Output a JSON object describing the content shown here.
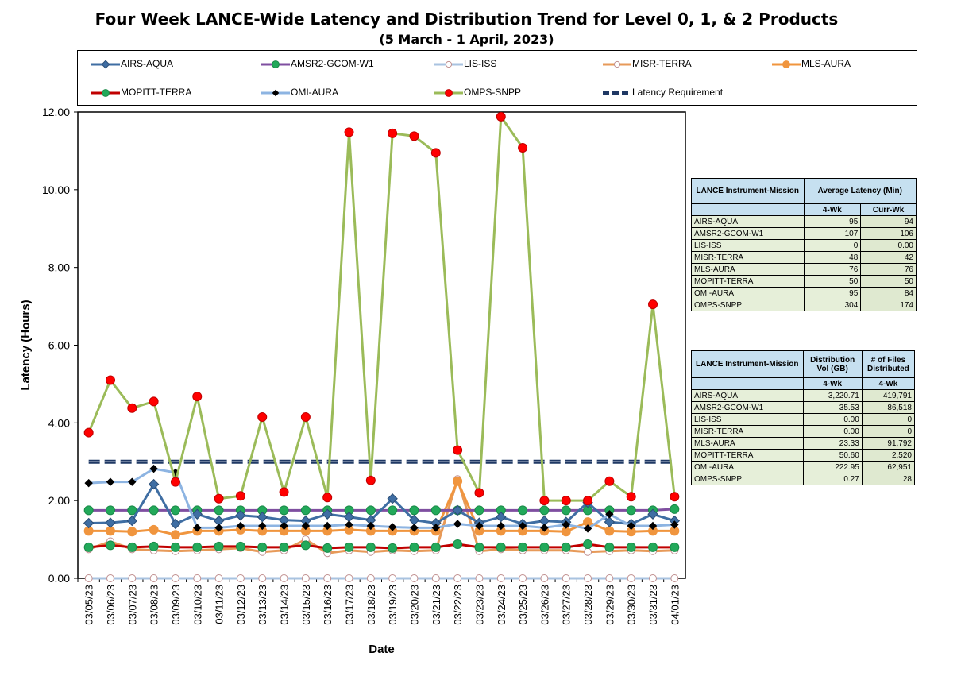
{
  "title": "Four Week LANCE-Wide Latency and Distribution Trend for Level 0, 1, & 2 Products",
  "subtitle": "(5  March    -  1  April,  2023)",
  "chart_data": {
    "type": "line",
    "title": "Four Week LANCE-Wide Latency and Distribution Trend for Level 0, 1, & 2 Products",
    "subtitle": "(5  March    -  1  April,  2023)",
    "xlabel": "Date",
    "ylabel": "Latency (Hours)",
    "ylim": [
      0,
      12
    ],
    "yticks": [
      "0.00",
      "2.00",
      "4.00",
      "6.00",
      "8.00",
      "10.00",
      "12.00"
    ],
    "legend_position": "top",
    "grid": false,
    "categories": [
      "03/05/23",
      "03/06/23",
      "03/07/23",
      "03/08/23",
      "03/09/23",
      "03/10/23",
      "03/11/23",
      "03/12/23",
      "03/13/23",
      "03/14/23",
      "03/15/23",
      "03/16/23",
      "03/17/23",
      "03/18/23",
      "03/19/23",
      "03/20/23",
      "03/21/23",
      "03/22/23",
      "03/23/23",
      "03/24/23",
      "03/25/23",
      "03/26/23",
      "03/27/23",
      "03/28/23",
      "03/29/23",
      "03/30/23",
      "03/31/23",
      "04/01/23"
    ],
    "series": [
      {
        "name": "AIRS-AQUA",
        "color": "#3f6ea3",
        "marker": "diamond",
        "values": [
          1.42,
          1.43,
          1.48,
          2.42,
          1.4,
          1.65,
          1.48,
          1.62,
          1.58,
          1.5,
          1.48,
          1.65,
          1.58,
          1.5,
          2.05,
          1.5,
          1.42,
          1.75,
          1.43,
          1.58,
          1.4,
          1.48,
          1.45,
          1.95,
          1.45,
          1.4,
          1.65,
          1.48
        ]
      },
      {
        "name": "AMSR2-GCOM-W1",
        "color": "#7f4fa0",
        "marker": "circle",
        "values": [
          1.75,
          1.75,
          1.75,
          1.75,
          1.75,
          1.75,
          1.75,
          1.75,
          1.75,
          1.75,
          1.75,
          1.75,
          1.75,
          1.75,
          1.75,
          1.75,
          1.75,
          1.75,
          1.75,
          1.75,
          1.75,
          1.75,
          1.75,
          1.75,
          1.75,
          1.75,
          1.75,
          1.78
        ]
      },
      {
        "name": "LIS-ISS",
        "color": "#a9c3e0",
        "marker": "circle-hollow",
        "values": [
          0,
          0,
          0,
          0,
          0,
          0,
          0,
          0,
          0,
          0,
          0,
          0,
          0,
          0,
          0,
          0,
          0,
          0,
          0,
          0,
          0,
          0,
          0,
          0,
          0,
          0,
          0,
          0
        ]
      },
      {
        "name": "MISR-TERRA",
        "color": "#e79a59",
        "marker": "circle-hollow",
        "values": [
          0.75,
          0.95,
          0.75,
          0.72,
          0.7,
          0.72,
          0.75,
          0.78,
          0.68,
          0.72,
          1.0,
          0.65,
          0.72,
          0.68,
          0.72,
          0.7,
          0.72,
          2.55,
          0.7,
          0.75,
          0.72,
          0.72,
          0.72,
          0.68,
          0.7,
          0.72,
          0.7,
          0.72
        ]
      },
      {
        "name": "MLS-AURA",
        "color": "#f0953e",
        "marker": "circle",
        "values": [
          1.22,
          1.22,
          1.2,
          1.25,
          1.12,
          1.22,
          1.22,
          1.25,
          1.22,
          1.22,
          1.22,
          1.22,
          1.25,
          1.22,
          1.22,
          1.22,
          1.22,
          2.5,
          1.22,
          1.22,
          1.22,
          1.22,
          1.2,
          1.45,
          1.22,
          1.2,
          1.22,
          1.22
        ]
      },
      {
        "name": "MOPITT-TERRA",
        "color": "#c00000",
        "marker": "circle",
        "values": [
          0.8,
          0.85,
          0.8,
          0.82,
          0.8,
          0.8,
          0.82,
          0.82,
          0.8,
          0.8,
          0.85,
          0.78,
          0.8,
          0.8,
          0.78,
          0.8,
          0.8,
          0.88,
          0.8,
          0.8,
          0.8,
          0.8,
          0.8,
          0.88,
          0.8,
          0.8,
          0.8,
          0.8
        ]
      },
      {
        "name": "OMI-AURA",
        "color": "#8db4e2",
        "marker": "diamond-black",
        "values": [
          2.45,
          2.48,
          2.48,
          2.82,
          2.72,
          1.3,
          1.3,
          1.35,
          1.35,
          1.35,
          1.35,
          1.35,
          1.38,
          1.35,
          1.32,
          1.3,
          1.3,
          1.4,
          1.35,
          1.35,
          1.35,
          1.3,
          1.38,
          1.28,
          1.65,
          1.35,
          1.35,
          1.38
        ]
      },
      {
        "name": "OMPS-SNPP",
        "color": "#9bbb59",
        "marker": "circle-red",
        "values": [
          3.75,
          5.1,
          4.38,
          4.55,
          2.48,
          4.68,
          2.05,
          2.12,
          4.15,
          2.22,
          4.15,
          2.08,
          11.48,
          2.52,
          11.45,
          11.38,
          10.95,
          3.3,
          2.2,
          11.88,
          11.08,
          2.0,
          2.0,
          2.0,
          2.5,
          2.1,
          7.05,
          2.1
        ]
      },
      {
        "name": "Latency Requirement",
        "color": "#1f3864",
        "marker": "none",
        "dashed": true,
        "values": [
          3,
          3,
          3,
          3,
          3,
          3,
          3,
          3,
          3,
          3,
          3,
          3,
          3,
          3,
          3,
          3,
          3,
          3,
          3,
          3,
          3,
          3,
          3,
          3,
          3,
          3,
          3,
          3
        ]
      }
    ]
  },
  "table1": {
    "h1": "LANCE Instrument-Mission",
    "h2": "Average Latency (Min)",
    "c1": "4-Wk",
    "c2": "Curr-Wk",
    "rows": [
      {
        "name": "AIRS-AQUA",
        "a": "95",
        "b": "94"
      },
      {
        "name": "AMSR2-GCOM-W1",
        "a": "107",
        "b": "106"
      },
      {
        "name": "LIS-ISS",
        "a": "0",
        "b": "0.00"
      },
      {
        "name": "MISR-TERRA",
        "a": "48",
        "b": "42"
      },
      {
        "name": "MLS-AURA",
        "a": "76",
        "b": "76"
      },
      {
        "name": "MOPITT-TERRA",
        "a": "50",
        "b": "50"
      },
      {
        "name": "OMI-AURA",
        "a": "95",
        "b": "84"
      },
      {
        "name": "OMPS-SNPP",
        "a": "304",
        "b": "174"
      }
    ]
  },
  "table2": {
    "h1": "LANCE Instrument-Mission",
    "h2": "Distribution Vol (GB)",
    "h3": "# of Files Distributed",
    "c1": "4-Wk",
    "c2": "4-Wk",
    "rows": [
      {
        "name": "AIRS-AQUA",
        "a": "3,220.71",
        "b": "419,791"
      },
      {
        "name": "AMSR2-GCOM-W1",
        "a": "35.53",
        "b": "86,518"
      },
      {
        "name": "LIS-ISS",
        "a": "0.00",
        "b": "0"
      },
      {
        "name": "MISR-TERRA",
        "a": "0.00",
        "b": "0"
      },
      {
        "name": "MLS-AURA",
        "a": "23.33",
        "b": "91,792"
      },
      {
        "name": "MOPITT-TERRA",
        "a": "50.60",
        "b": "2,520"
      },
      {
        "name": "OMI-AURA",
        "a": "222.95",
        "b": "62,951"
      },
      {
        "name": "OMPS-SNPP",
        "a": "0.27",
        "b": "28"
      }
    ]
  }
}
